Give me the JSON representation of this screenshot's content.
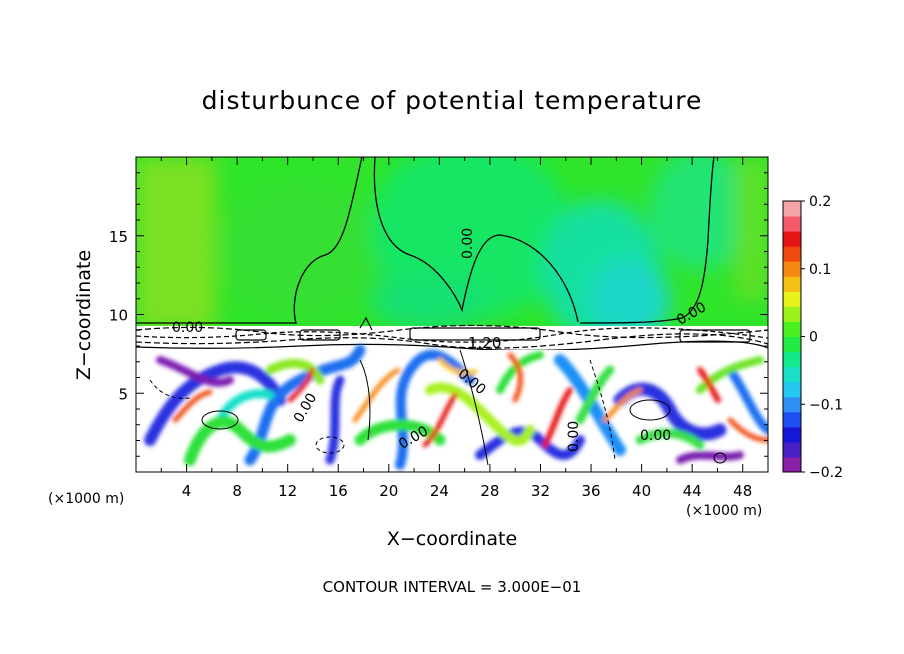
{
  "chart_data": {
    "type": "heatmap",
    "title": "disturbunce of potential temperature",
    "xlabel": "X−coordinate",
    "ylabel": "Z−coordinate",
    "x_unit": "(×1000 m)",
    "x_unit_right": "(×1000 m)",
    "xlim": [
      0,
      50
    ],
    "ylim": [
      0,
      20
    ],
    "x_ticks": [
      4,
      8,
      12,
      16,
      20,
      24,
      28,
      32,
      36,
      40,
      44,
      48
    ],
    "y_ticks": [
      5,
      10,
      15
    ],
    "colorbar": {
      "min": -0.2,
      "max": 0.2,
      "tick_values": [
        0.2,
        0.1,
        0,
        -0.1,
        -0.2
      ],
      "tick_labels": [
        "0.2",
        "0.1",
        "0",
        "−0.1",
        "−0.2"
      ],
      "colors": [
        "#8a1fa8",
        "#4b1fc8",
        "#1616d8",
        "#1f4ff0",
        "#2f8ff5",
        "#22c8f0",
        "#19e0c8",
        "#13e88a",
        "#22ea44",
        "#4aef20",
        "#9af21a",
        "#e6f21a",
        "#f5c015",
        "#f58a12",
        "#f04a10",
        "#e51515",
        "#f45a6a",
        "#f5a3a8"
      ]
    },
    "contour_labels": [
      "0.00",
      "0.00",
      "0.00",
      "0.00",
      "0.00",
      "0.00",
      "0.00",
      "0.00",
      "1.20"
    ],
    "contour_interval_text": "CONTOUR INTERVAL = 3.000E−01"
  }
}
